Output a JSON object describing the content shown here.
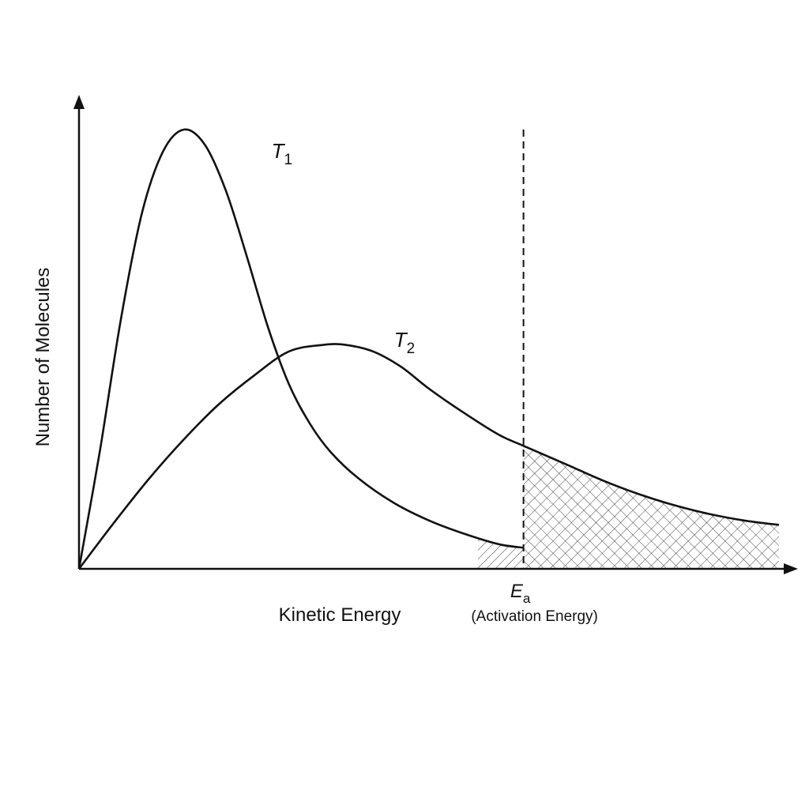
{
  "chart_data": {
    "type": "line",
    "title": "",
    "xlabel": "Kinetic Energy",
    "ylabel": "Number of Molecules",
    "xlim": [
      0,
      10
    ],
    "ylim": [
      0,
      10
    ],
    "grid": false,
    "legend": "none",
    "series": [
      {
        "name": "T1",
        "color": "#111111",
        "x": [
          0,
          0.3,
          0.6,
          0.9,
          1.2,
          1.5,
          1.8,
          2.1,
          2.4,
          2.7,
          3.0,
          3.3,
          3.6,
          4.0,
          4.5,
          5.0,
          5.5,
          6.0,
          6.35
        ],
        "y": [
          0,
          2.7,
          5.7,
          8.1,
          9.5,
          10.0,
          9.65,
          8.6,
          7.1,
          5.5,
          4.2,
          3.3,
          2.65,
          2.05,
          1.5,
          1.1,
          0.8,
          0.56,
          0.48
        ]
      },
      {
        "name": "T2",
        "color": "#111111",
        "x": [
          0,
          0.5,
          1.0,
          1.5,
          2.0,
          2.5,
          3.0,
          3.5,
          3.8,
          4.2,
          4.6,
          5.0,
          5.5,
          6.0,
          6.35,
          7.0,
          7.5,
          8.0,
          8.5,
          9.0,
          9.5,
          10.0
        ],
        "y": [
          0,
          1.05,
          2.05,
          2.95,
          3.75,
          4.4,
          4.95,
          5.1,
          5.1,
          4.95,
          4.6,
          4.1,
          3.55,
          3.05,
          2.8,
          2.35,
          2.0,
          1.7,
          1.45,
          1.25,
          1.1,
          1.0
        ]
      }
    ],
    "activation_energy": {
      "x": 6.35,
      "label_main": "E",
      "label_sub": "a",
      "caption": "(Activation Energy)"
    },
    "series_labels": [
      {
        "main": "T",
        "sub": "1",
        "x": 2.75,
        "y": 9.35
      },
      {
        "main": "T",
        "sub": "2",
        "x": 4.5,
        "y": 5.05
      }
    ],
    "shading": [
      {
        "series": "T1",
        "pattern": "diagonal-hatch",
        "x_from": 5.7,
        "x_to": 6.35
      },
      {
        "series": "T2",
        "pattern": "cross-hatch",
        "x_from": 6.35,
        "x_to": 10.0
      }
    ]
  }
}
